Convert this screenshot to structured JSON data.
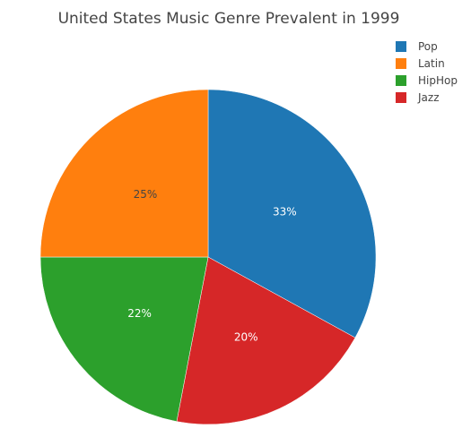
{
  "chart_data": {
    "type": "pie",
    "title": "United States Music Genre Prevalent in 1999",
    "series": [
      {
        "name": "Pop",
        "value": 33,
        "label": "33%",
        "color": "#1f77b4",
        "label_color": "#ffffff"
      },
      {
        "name": "Jazz",
        "value": 20,
        "label": "20%",
        "color": "#d62728",
        "label_color": "#ffffff"
      },
      {
        "name": "HipHop",
        "value": 22,
        "label": "22%",
        "color": "#2ca02c",
        "label_color": "#ffffff"
      },
      {
        "name": "Latin",
        "value": 25,
        "label": "25%",
        "color": "#ff7f0e",
        "label_color": "#444444"
      }
    ],
    "legend": {
      "position": "top-right",
      "order": [
        "Pop",
        "Latin",
        "HipHop",
        "Jazz"
      ]
    },
    "start_angle": "12 o'clock",
    "direction": "clockwise"
  }
}
